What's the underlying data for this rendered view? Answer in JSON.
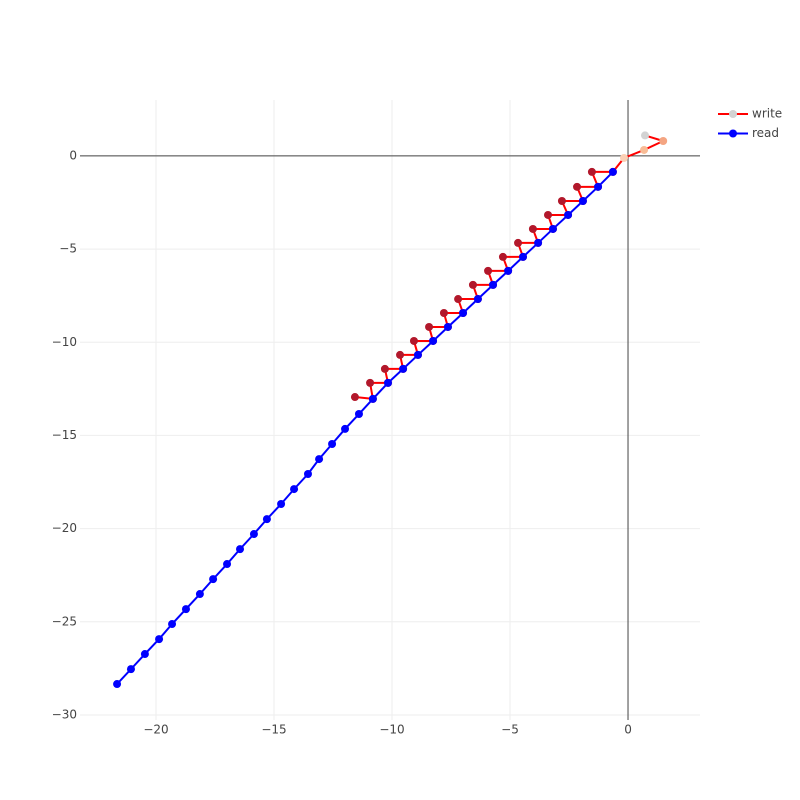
{
  "chart_data": {
    "type": "scatter",
    "xlim": [
      -23.22,
      3.05
    ],
    "ylim": [
      -30.27,
      3.0
    ],
    "xticks": [
      {
        "value": -20,
        "label": "−20"
      },
      {
        "value": -15,
        "label": "−15"
      },
      {
        "value": -10,
        "label": "−10"
      },
      {
        "value": -5,
        "label": "−5"
      },
      0
    ],
    "yticks": [
      0,
      {
        "value": -5,
        "label": "−5"
      },
      {
        "value": -10,
        "label": "−10"
      },
      {
        "value": -15,
        "label": "−15"
      },
      {
        "value": -20,
        "label": "−20"
      },
      {
        "value": -25,
        "label": "−25"
      },
      {
        "value": -30,
        "label": "−30"
      }
    ],
    "grid": true,
    "zeroline": true,
    "legend": "top-right",
    "series": [
      {
        "name": "write",
        "color": "#ff0000",
        "legend_marker_color": "#d3d3d3",
        "x": [
          0.72,
          1.49,
          0.68,
          -0.17,
          -0.64,
          -1.53,
          -1.27,
          -2.16,
          -1.91,
          -2.8,
          -2.54,
          -3.39,
          -3.18,
          -4.03,
          -3.81,
          -4.66,
          -4.45,
          -5.3,
          -5.08,
          -5.93,
          -5.72,
          -6.57,
          -6.36,
          -7.2,
          -6.99,
          -7.8,
          -7.63,
          -8.43,
          -8.26,
          -9.07,
          -8.9,
          -9.66,
          -9.53,
          -10.3,
          -10.17,
          -10.93,
          -10.81,
          -11.57
        ],
        "values": [
          1.1,
          0.8,
          0.32,
          -0.11,
          -0.86,
          -0.86,
          -1.66,
          -1.66,
          -2.42,
          -2.42,
          -3.17,
          -3.17,
          -3.92,
          -3.92,
          -4.67,
          -4.67,
          -5.42,
          -5.42,
          -6.17,
          -6.17,
          -6.92,
          -6.92,
          -7.68,
          -7.68,
          -8.43,
          -8.43,
          -9.18,
          -9.18,
          -9.93,
          -9.93,
          -10.68,
          -10.68,
          -11.43,
          -11.43,
          -12.18,
          -12.18,
          -13.04,
          -12.94
        ],
        "marker_colors": [
          "#d3d3d3",
          "#f4a582",
          "#f8bc96",
          "#fbd0b5",
          "#b2182b",
          "#b2182b",
          "#b2182b",
          "#b2182b",
          "#b2182b",
          "#b2182b",
          "#b2182b",
          "#b2182b",
          "#b2182b",
          "#b2182b",
          "#b2182b",
          "#b2182b",
          "#b2182b",
          "#b2182b",
          "#b2182b",
          "#b2182b",
          "#b2182b",
          "#b2182b",
          "#b2182b",
          "#b2182b",
          "#b2182b",
          "#b2182b",
          "#b2182b",
          "#b2182b",
          "#b2182b",
          "#b2182b",
          "#b2182b",
          "#b2182b",
          "#b2182b",
          "#b2182b",
          "#b2182b",
          "#b2182b",
          "#b2182b",
          "#b2182b"
        ]
      },
      {
        "name": "read",
        "color": "#0000ff",
        "legend_marker_color": "#0000ff",
        "x": [
          -21.65,
          -21.06,
          -20.47,
          -19.87,
          -19.32,
          -18.73,
          -18.14,
          -17.58,
          -16.99,
          -16.44,
          -15.85,
          -15.3,
          -14.7,
          -14.15,
          -13.56,
          -13.09,
          -12.54,
          -11.99,
          -11.4,
          -10.81,
          -10.17,
          -9.53,
          -8.9,
          -8.26,
          -7.63,
          -6.99,
          -6.36,
          -5.72,
          -5.08,
          -4.45,
          -3.81,
          -3.18,
          -2.54,
          -1.91,
          -1.27,
          -0.64
        ],
        "values": [
          -28.34,
          -27.54,
          -26.73,
          -25.93,
          -25.12,
          -24.32,
          -23.51,
          -22.71,
          -21.9,
          -21.1,
          -20.29,
          -19.49,
          -18.68,
          -17.88,
          -17.07,
          -16.27,
          -15.46,
          -14.65,
          -13.85,
          -13.04,
          -12.18,
          -11.43,
          -10.68,
          -9.93,
          -9.18,
          -8.43,
          -7.68,
          -6.92,
          -6.17,
          -5.42,
          -4.67,
          -3.92,
          -3.17,
          -2.42,
          -1.66,
          -0.86
        ],
        "marker_colors": [
          "#0000ff",
          "#0000ff",
          "#0000ff",
          "#0000ff",
          "#0000ff",
          "#0000ff",
          "#0000ff",
          "#0000ff",
          "#0000ff",
          "#0000ff",
          "#0000ff",
          "#0000ff",
          "#0000ff",
          "#0000ff",
          "#0000ff",
          "#0000ff",
          "#0000ff",
          "#0000ff",
          "#0000ff",
          "#0000ff",
          "#0000ff",
          "#0000ff",
          "#0000ff",
          "#0000ff",
          "#0000ff",
          "#0000ff",
          "#0000ff",
          "#0000ff",
          "#0000ff",
          "#0000ff",
          "#0000ff",
          "#0000ff",
          "#0000ff",
          "#0000ff",
          "#0000ff",
          "#0000ff"
        ]
      }
    ]
  }
}
